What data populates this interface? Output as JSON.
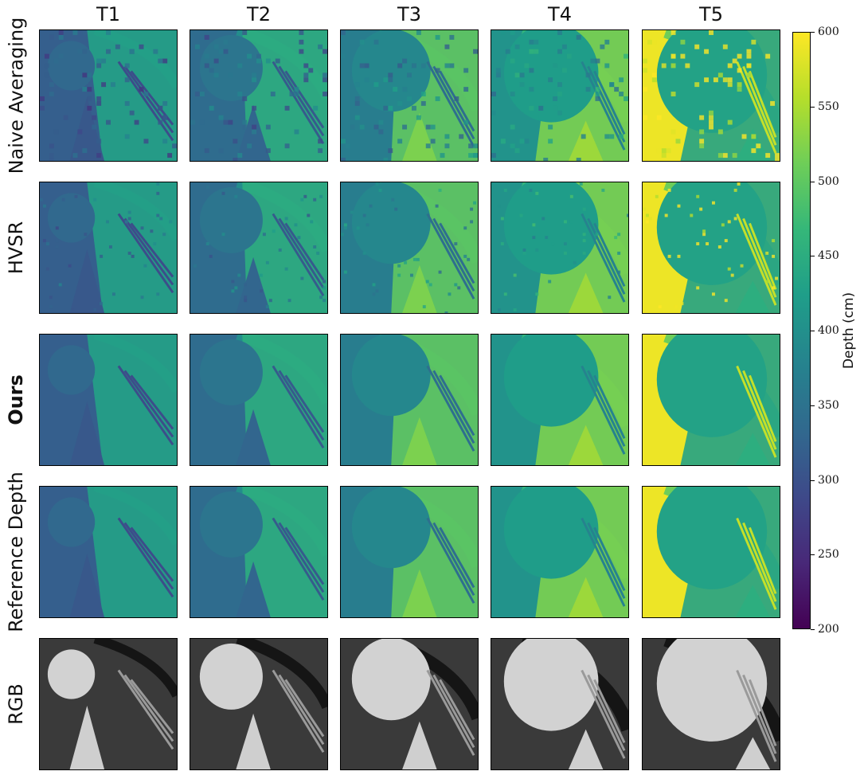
{
  "chart_data": {
    "type": "heatmap",
    "columns": [
      "T1",
      "T2",
      "T3",
      "T4",
      "T5"
    ],
    "rows": [
      "Naive Averaging",
      "HVSR",
      "Ours",
      "Reference Depth",
      "RGB"
    ],
    "row_bold": [
      false,
      false,
      true,
      false,
      false
    ],
    "colormap": "viridis",
    "colorbar": {
      "label": "Depth (cm)",
      "range": [
        200,
        600
      ],
      "ticks": [
        200,
        250,
        300,
        350,
        400,
        450,
        500,
        550,
        600
      ]
    },
    "approx_depth_cm": {
      "background": [
        320,
        340,
        370,
        405,
        590
      ],
      "foreground": [
        430,
        450,
        500,
        520,
        430
      ]
    },
    "rgb_shown": [
      true,
      true,
      true,
      true,
      true
    ],
    "colors": {
      "viridis": [
        "#440154",
        "#482878",
        "#3e4989",
        "#31688e",
        "#26828e",
        "#1f9e89",
        "#35b779",
        "#6ece58",
        "#b5de2b",
        "#fde725"
      ]
    }
  }
}
